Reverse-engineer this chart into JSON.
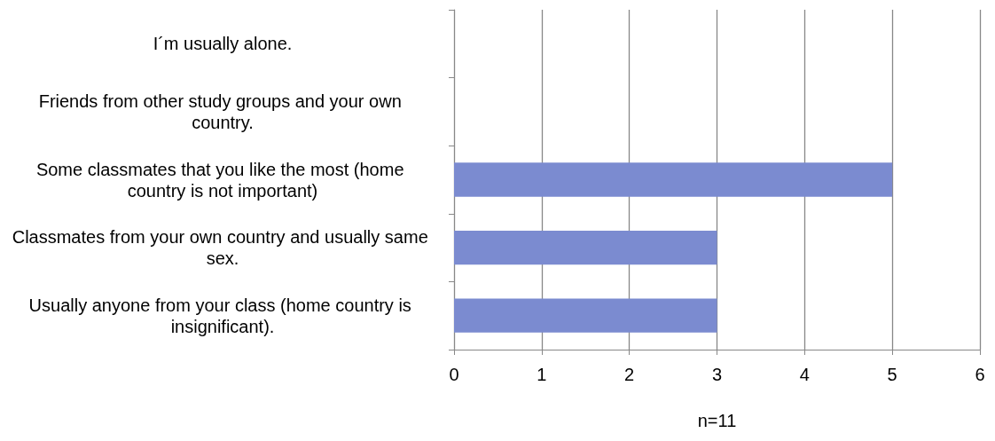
{
  "chart_data": {
    "type": "bar",
    "orientation": "horizontal",
    "categories": [
      "I´m usually alone.",
      "Friends from other study groups and your own country.",
      "Some classmates that you like the most (home country is not important)",
      "Classmates from your own country and usually same sex.",
      "Usually anyone from your class (home country is insignificant)."
    ],
    "values": [
      0,
      0,
      5,
      3,
      3
    ],
    "color": "#7b8bd0",
    "xlim": [
      0,
      6
    ],
    "xticks": [
      0,
      1,
      2,
      3,
      4,
      5,
      6
    ],
    "xlabel": "n=11",
    "grid": "x"
  }
}
